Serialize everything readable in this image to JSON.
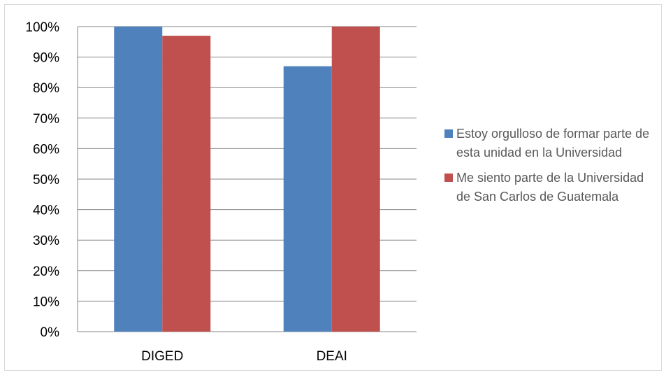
{
  "chart_data": {
    "type": "bar",
    "categories": [
      "DIGED",
      "DEAI"
    ],
    "series": [
      {
        "name": "Estoy orgulloso de formar parte de esta unidad en la Universidad",
        "values": [
          100,
          87
        ],
        "color": "#4f81bd"
      },
      {
        "name": "Me siento parte de la Universidad de San Carlos de Guatemala",
        "values": [
          97,
          100
        ],
        "color": "#c0504d"
      }
    ],
    "y_ticks": [
      "0%",
      "10%",
      "20%",
      "30%",
      "40%",
      "50%",
      "60%",
      "70%",
      "80%",
      "90%",
      "100%"
    ],
    "ylim": [
      0,
      100
    ],
    "grid": true,
    "legend_position": "right",
    "title": "",
    "xlabel": "",
    "ylabel": ""
  }
}
